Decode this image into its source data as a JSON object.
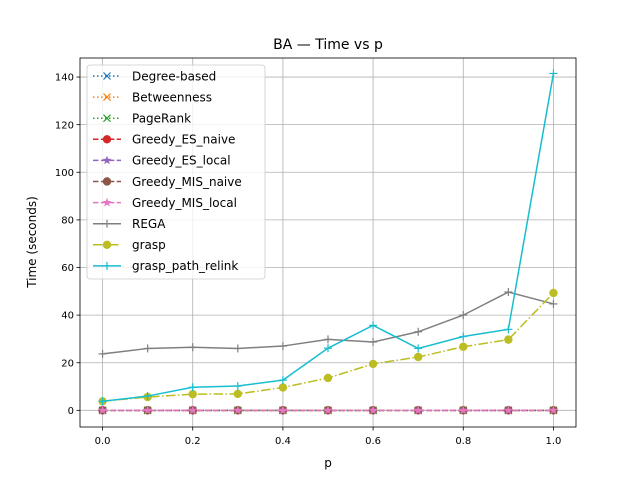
{
  "chart_data": {
    "type": "line",
    "title": "BA — Time vs p",
    "xlabel": "p",
    "ylabel": "Time (seconds)",
    "xlim": [
      -0.05,
      1.05
    ],
    "ylim": [
      -7,
      148
    ],
    "xticks": [
      0.0,
      0.2,
      0.4,
      0.6,
      0.8,
      1.0
    ],
    "xtick_labels": [
      "0.0",
      "0.2",
      "0.4",
      "0.6",
      "0.8",
      "1.0"
    ],
    "yticks": [
      0,
      20,
      40,
      60,
      80,
      100,
      120,
      140
    ],
    "ytick_labels": [
      "0",
      "20",
      "40",
      "60",
      "80",
      "100",
      "120",
      "140"
    ],
    "grid": true,
    "legend_position": "top-left",
    "x": [
      0.0,
      0.1,
      0.2,
      0.3,
      0.4,
      0.5,
      0.6,
      0.7,
      0.8,
      0.9,
      1.0
    ],
    "series": [
      {
        "name": "Degree-based",
        "color": "#1f77b4",
        "dash": "dotted",
        "marker": "x",
        "values": [
          0,
          0,
          0,
          0,
          0,
          0,
          0,
          0,
          0,
          0,
          0
        ]
      },
      {
        "name": "Betweenness",
        "color": "#ff7f0e",
        "dash": "dotted",
        "marker": "x",
        "values": [
          0,
          0,
          0,
          0,
          0,
          0,
          0,
          0,
          0,
          0,
          0
        ]
      },
      {
        "name": "PageRank",
        "color": "#2ca02c",
        "dash": "dotted",
        "marker": "x",
        "values": [
          0,
          0,
          0,
          0,
          0,
          0,
          0,
          0,
          0,
          0,
          0
        ]
      },
      {
        "name": "Greedy_ES_naive",
        "color": "#d62728",
        "dash": "dashed",
        "marker": "o",
        "values": [
          0,
          0,
          0,
          0,
          0,
          0,
          0,
          0,
          0,
          0,
          0
        ]
      },
      {
        "name": "Greedy_ES_local",
        "color": "#9467bd",
        "dash": "dashed",
        "marker": "star",
        "values": [
          0,
          0,
          0,
          0,
          0,
          0,
          0,
          0,
          0,
          0,
          0
        ]
      },
      {
        "name": "Greedy_MIS_naive",
        "color": "#8c564b",
        "dash": "dashed",
        "marker": "o",
        "values": [
          0,
          0,
          0,
          0,
          0,
          0,
          0,
          0,
          0,
          0,
          0
        ]
      },
      {
        "name": "Greedy_MIS_local",
        "color": "#e377c2",
        "dash": "dashed",
        "marker": "star",
        "values": [
          0,
          0,
          0,
          0,
          0,
          0,
          0,
          0,
          0,
          0,
          0
        ]
      },
      {
        "name": "REGA",
        "color": "#7f7f7f",
        "dash": "solid",
        "marker": "plus",
        "values": [
          23.7,
          26.0,
          26.5,
          26.0,
          27.0,
          29.8,
          28.7,
          33.0,
          40.0,
          49.7,
          44.7
        ]
      },
      {
        "name": "grasp",
        "color": "#bcbd22",
        "dash": "dashdot",
        "marker": "o",
        "values": [
          3.8,
          5.6,
          6.8,
          6.9,
          9.6,
          13.6,
          19.5,
          22.4,
          26.7,
          29.7,
          49.3
        ]
      },
      {
        "name": "grasp_path_relink",
        "color": "#17becf",
        "dash": "solid",
        "marker": "plus",
        "values": [
          3.8,
          6.0,
          9.7,
          10.2,
          12.7,
          26.1,
          35.7,
          26.0,
          31.0,
          34.0,
          141.5
        ]
      }
    ]
  }
}
